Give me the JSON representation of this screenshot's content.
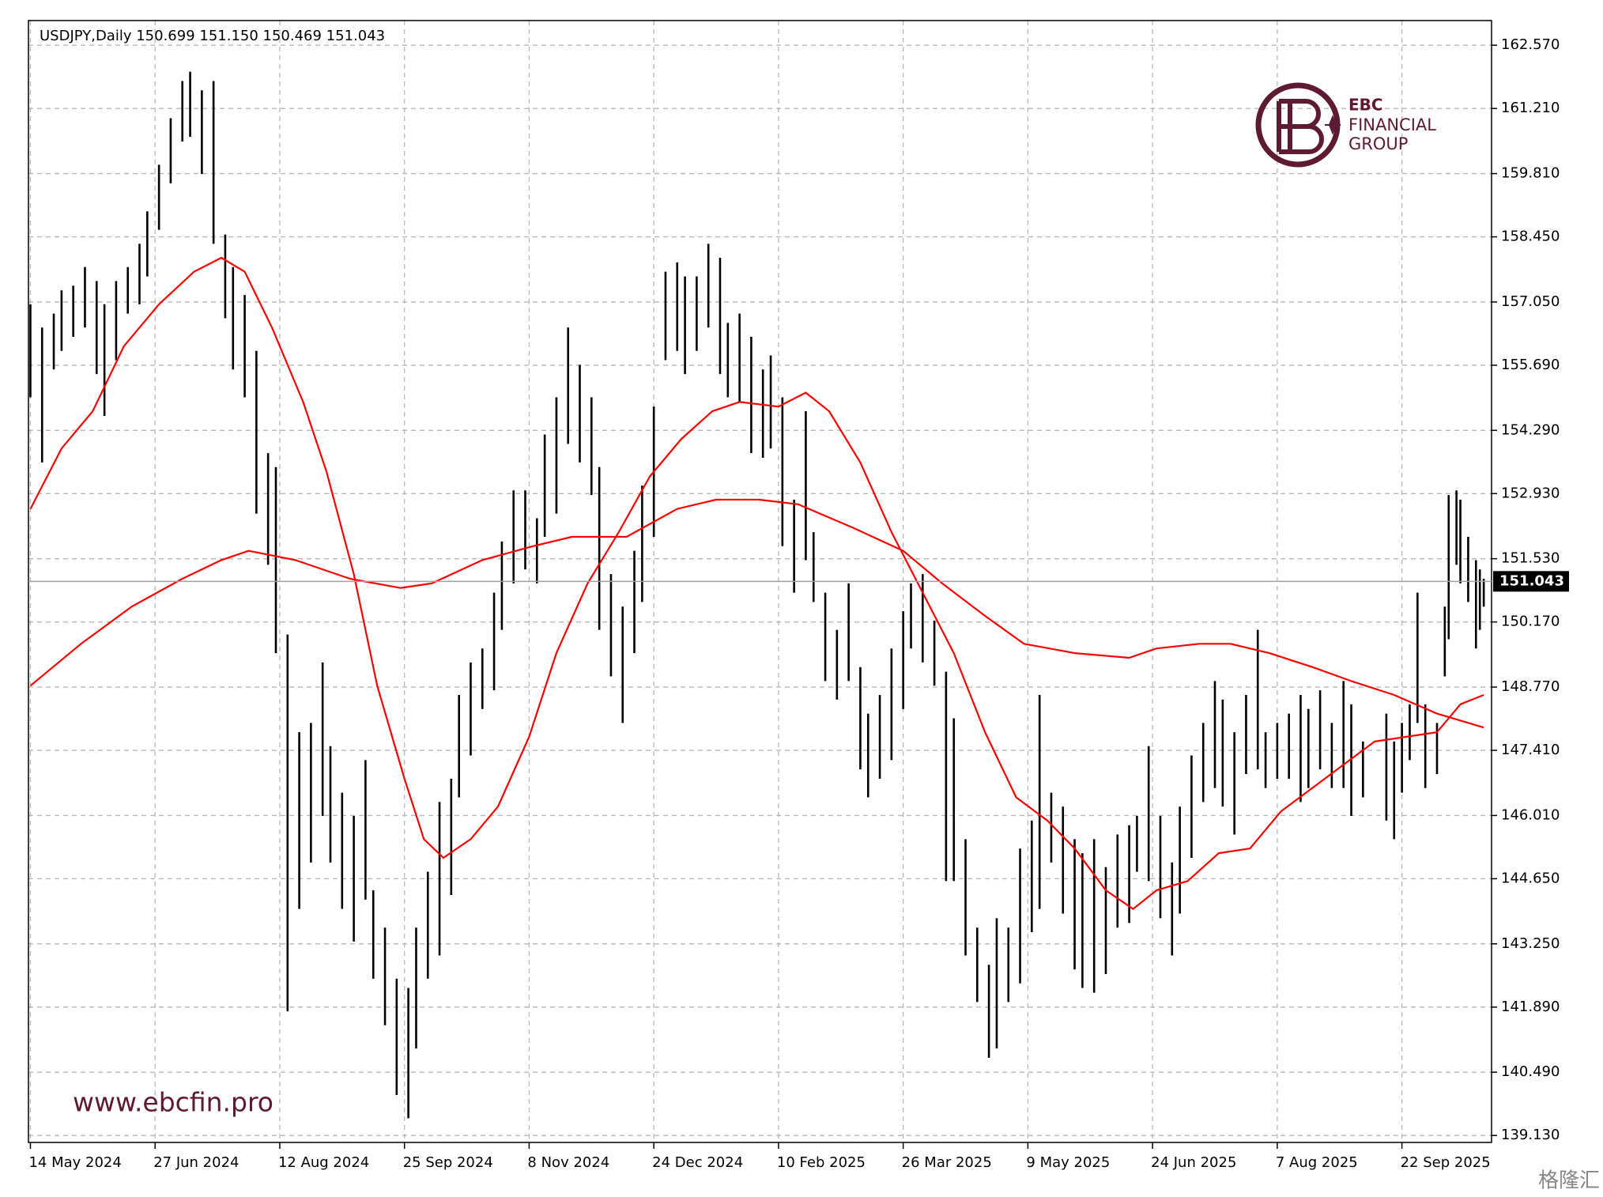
{
  "chart_data": {
    "type": "ohlc",
    "title": "USDJPY,Daily  150.699 151.150 150.469 151.043",
    "color": "#000000",
    "grid": true,
    "current_price": 151.043,
    "x": [
      0,
      3,
      6,
      8,
      11,
      14,
      17,
      19,
      22,
      25,
      28,
      30,
      33,
      36,
      39,
      41,
      44,
      47,
      50,
      52,
      55,
      58,
      61,
      63,
      66,
      69,
      72,
      75,
      77,
      80,
      83,
      86,
      88,
      91,
      94,
      97,
      99,
      102,
      105,
      108,
      110,
      113,
      116,
      119,
      121,
      124,
      127,
      130,
      132,
      135,
      138,
      141,
      144,
      146,
      149,
      152,
      155,
      157,
      160,
      163,
      166,
      168,
      171,
      174,
      177,
      179,
      182,
      185,
      188,
      190,
      193,
      196,
      199,
      201,
      204,
      207,
      210,
      213,
      215,
      218,
      221,
      224,
      226,
      229,
      232,
      235,
      237,
      240,
      243,
      246,
      248,
      251,
      254,
      257,
      259,
      262,
      265,
      268,
      270,
      273,
      276,
      279,
      282,
      284,
      287,
      290,
      293,
      295,
      298,
      301,
      304,
      306,
      309,
      312,
      315,
      317,
      320,
      323,
      326,
      328,
      331,
      334,
      337,
      339,
      342,
      348,
      350,
      352,
      354,
      356,
      358,
      361,
      363,
      364,
      366,
      367,
      369,
      371,
      372,
      373
    ],
    "high": [
      157.0,
      156.5,
      156.8,
      157.3,
      157.4,
      157.8,
      157.5,
      157.0,
      157.5,
      157.8,
      158.3,
      159.0,
      160.0,
      161.0,
      161.8,
      162.0,
      161.6,
      161.8,
      158.5,
      157.8,
      157.2,
      156.0,
      153.8,
      153.5,
      149.9,
      147.8,
      148.0,
      149.3,
      147.5,
      146.5,
      146.0,
      147.2,
      144.4,
      143.6,
      142.5,
      142.3,
      143.6,
      144.8,
      146.3,
      146.8,
      148.6,
      149.3,
      149.6,
      150.8,
      151.9,
      153.0,
      153.0,
      152.4,
      154.2,
      155.0,
      156.5,
      155.7,
      155.0,
      153.5,
      151.2,
      150.5,
      151.7,
      153.1,
      154.8,
      157.7,
      157.9,
      157.6,
      157.6,
      158.3,
      158.0,
      156.6,
      156.8,
      156.3,
      155.6,
      155.9,
      155.0,
      152.8,
      154.7,
      152.1,
      150.8,
      150.0,
      151.0,
      149.2,
      148.2,
      148.6,
      149.6,
      150.4,
      151.0,
      151.2,
      150.2,
      149.1,
      148.1,
      145.5,
      143.6,
      142.8,
      143.8,
      143.6,
      145.3,
      145.9,
      148.6,
      146.5,
      146.2,
      145.5,
      145.2,
      145.5,
      144.9,
      145.6,
      145.8,
      146.0,
      147.5,
      146.0,
      145.0,
      146.2,
      147.3,
      148.0,
      148.9,
      148.5,
      147.8,
      148.6,
      150.0,
      147.8,
      148.0,
      148.2,
      148.6,
      148.3,
      148.7,
      148.0,
      148.9,
      148.4,
      147.6,
      148.2,
      147.6,
      148.0,
      148.4,
      150.8,
      148.4,
      148.0,
      150.5,
      152.9,
      153.0,
      152.8,
      152.0,
      151.5,
      151.3,
      151.1
    ],
    "low": [
      155.0,
      153.6,
      155.6,
      156.0,
      156.3,
      156.5,
      155.5,
      154.6,
      155.8,
      156.8,
      157.0,
      157.6,
      158.6,
      159.6,
      160.5,
      160.6,
      159.8,
      158.3,
      156.7,
      155.6,
      155.0,
      152.5,
      151.4,
      149.5,
      141.8,
      144.0,
      145.0,
      146.0,
      145.0,
      144.0,
      143.3,
      144.2,
      142.5,
      141.5,
      140.0,
      139.5,
      141.0,
      142.5,
      143.0,
      144.3,
      146.4,
      147.3,
      148.3,
      148.7,
      150.0,
      151.0,
      151.3,
      151.0,
      152.0,
      152.5,
      154.0,
      153.6,
      152.9,
      150.0,
      149.0,
      148.0,
      149.5,
      150.6,
      152.0,
      155.8,
      156.0,
      155.5,
      156.0,
      156.5,
      155.5,
      155.0,
      154.9,
      153.8,
      153.7,
      153.9,
      151.8,
      150.8,
      151.5,
      150.6,
      148.9,
      148.5,
      148.9,
      147.0,
      146.4,
      146.8,
      147.2,
      148.3,
      149.6,
      149.3,
      148.8,
      144.6,
      144.6,
      143.0,
      142.0,
      140.8,
      141.0,
      142.0,
      142.4,
      143.5,
      144.0,
      145.0,
      143.9,
      142.7,
      142.3,
      142.2,
      142.6,
      143.6,
      143.7,
      144.8,
      144.6,
      143.8,
      143.0,
      143.9,
      145.1,
      146.3,
      146.6,
      146.2,
      145.6,
      146.9,
      147.0,
      146.6,
      146.8,
      146.8,
      146.3,
      146.6,
      147.0,
      146.6,
      146.6,
      146.0,
      146.4,
      145.9,
      145.5,
      146.5,
      147.2,
      148.0,
      146.6,
      146.9,
      149.0,
      149.8,
      151.4,
      151.0,
      150.6,
      149.6,
      150.0,
      150.5
    ],
    "lines": [
      {
        "color": "#ff0000",
        "x": [
          0,
          8,
          16,
          24,
          33,
          42,
          49,
          55,
          62,
          70,
          76,
          83,
          89,
          96,
          101,
          106,
          113,
          120,
          128,
          135,
          143,
          151,
          159,
          167,
          175,
          182,
          192,
          199,
          205,
          213,
          221,
          229,
          237,
          245,
          253,
          261,
          268,
          276,
          283,
          289,
          297,
          305,
          313,
          321,
          329,
          337,
          345,
          353,
          361,
          367,
          373
        ],
        "values": [
          152.6,
          153.9,
          154.7,
          156.1,
          157.0,
          157.7,
          158.0,
          157.7,
          156.5,
          154.9,
          153.4,
          151.2,
          148.8,
          146.8,
          145.5,
          145.1,
          145.5,
          146.2,
          147.7,
          149.5,
          151.0,
          152.1,
          153.3,
          154.1,
          154.7,
          154.9,
          154.8,
          155.1,
          154.7,
          153.6,
          152.1,
          150.8,
          149.5,
          147.8,
          146.4,
          145.9,
          145.3,
          144.4,
          144.0,
          144.4,
          144.6,
          145.2,
          145.3,
          146.1,
          146.6,
          147.1,
          147.6,
          147.7,
          147.8,
          148.4,
          148.6
        ]
      },
      {
        "color": "#ff0000",
        "x": [
          0,
          13,
          26,
          39,
          49,
          56,
          68,
          82,
          95,
          103,
          116,
          129,
          139,
          153,
          166,
          176,
          187,
          197,
          211,
          224,
          234,
          245,
          255,
          268,
          282,
          289,
          300,
          308,
          318,
          329,
          339,
          350,
          361,
          373
        ],
        "values": [
          148.8,
          149.7,
          150.5,
          151.1,
          151.5,
          151.7,
          151.5,
          151.1,
          150.9,
          151.0,
          151.5,
          151.8,
          152.0,
          152.0,
          152.6,
          152.8,
          152.8,
          152.7,
          152.2,
          151.7,
          151.0,
          150.3,
          149.7,
          149.5,
          149.4,
          149.6,
          149.7,
          149.7,
          149.5,
          149.2,
          148.9,
          148.6,
          148.2,
          147.9
        ]
      }
    ],
    "xlim": [
      -0.5,
      375
    ],
    "xticks": [
      {
        "value": 0,
        "label": "14 May 2024"
      },
      {
        "value": 32,
        "label": "27 Jun 2024"
      },
      {
        "value": 64,
        "label": "12 Aug 2024"
      },
      {
        "value": 96,
        "label": "25 Sep 2024"
      },
      {
        "value": 128,
        "label": "8 Nov 2024"
      },
      {
        "value": 160,
        "label": "24 Dec 2024"
      },
      {
        "value": 192,
        "label": "10 Feb 2025"
      },
      {
        "value": 224,
        "label": "26 Mar 2025"
      },
      {
        "value": 256,
        "label": "9 May 2025"
      },
      {
        "value": 288,
        "label": "24 Jun 2025"
      },
      {
        "value": 320,
        "label": "7 Aug 2025"
      },
      {
        "value": 352,
        "label": "22 Sep 2025"
      }
    ],
    "ylim": [
      138.98,
      163.1
    ],
    "yticks": [
      {
        "value": 162.57,
        "label": "162.570"
      },
      {
        "value": 161.21,
        "label": "161.210"
      },
      {
        "value": 159.81,
        "label": "159.810"
      },
      {
        "value": 158.45,
        "label": "158.450"
      },
      {
        "value": 157.05,
        "label": "157.050"
      },
      {
        "value": 155.69,
        "label": "155.690"
      },
      {
        "value": 154.29,
        "label": "154.290"
      },
      {
        "value": 152.93,
        "label": "152.930"
      },
      {
        "value": 151.53,
        "label": "151.530"
      },
      {
        "value": 150.17,
        "label": "150.170"
      },
      {
        "value": 148.77,
        "label": "148.770"
      },
      {
        "value": 147.41,
        "label": "147.410"
      },
      {
        "value": 146.01,
        "label": "146.010"
      },
      {
        "value": 144.65,
        "label": "144.650"
      },
      {
        "value": 143.25,
        "label": "143.250"
      },
      {
        "value": 141.89,
        "label": "141.890"
      },
      {
        "value": 140.49,
        "label": "140.490"
      },
      {
        "value": 139.13,
        "label": "139.130"
      }
    ]
  },
  "watermarks": {
    "brand": "EBC",
    "brand_line2": "FINANCIAL",
    "brand_line3": "GROUP",
    "website": "www.ebcfin.pro",
    "source": "格隆汇"
  }
}
